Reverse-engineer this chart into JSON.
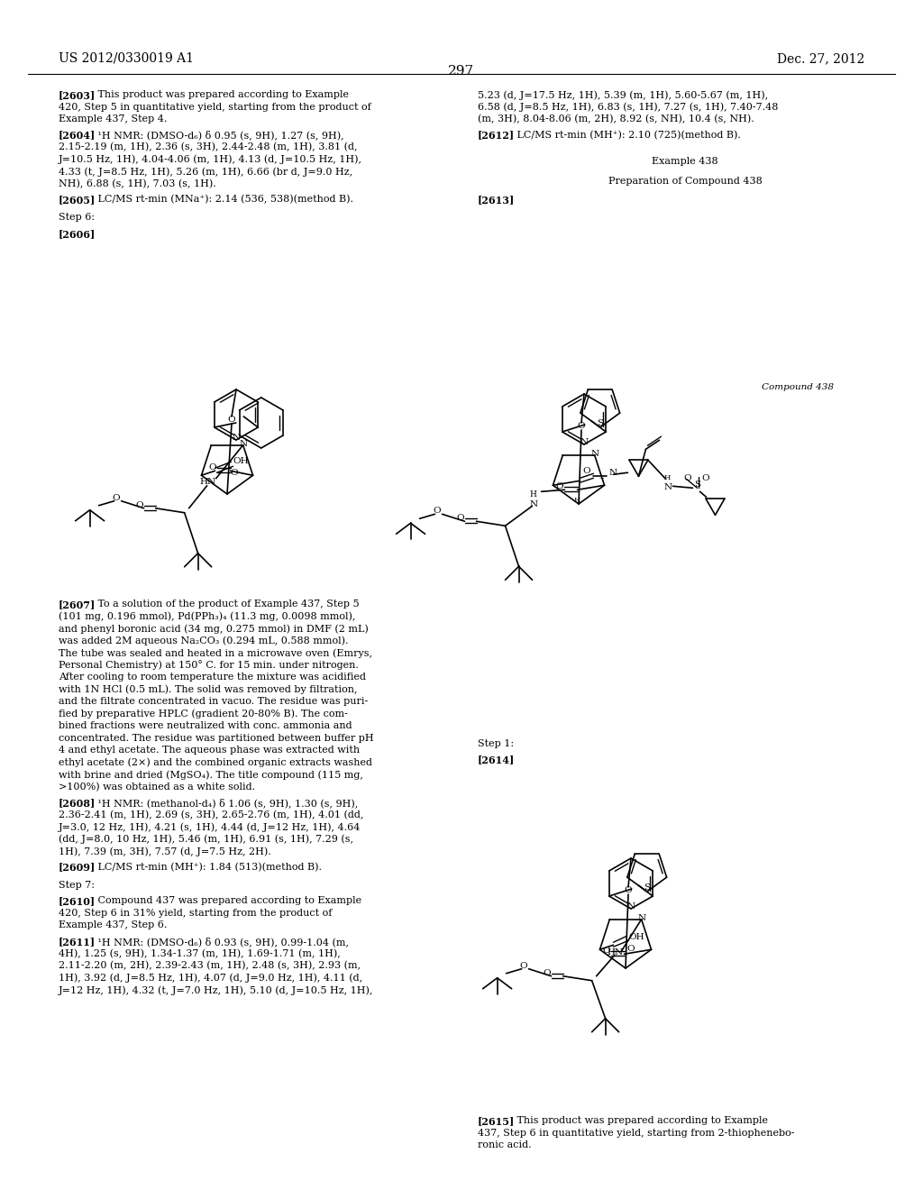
{
  "page_header_left": "US 2012/0330019 A1",
  "page_header_right": "Dec. 27, 2012",
  "page_number": "297",
  "background_color": "#ffffff"
}
